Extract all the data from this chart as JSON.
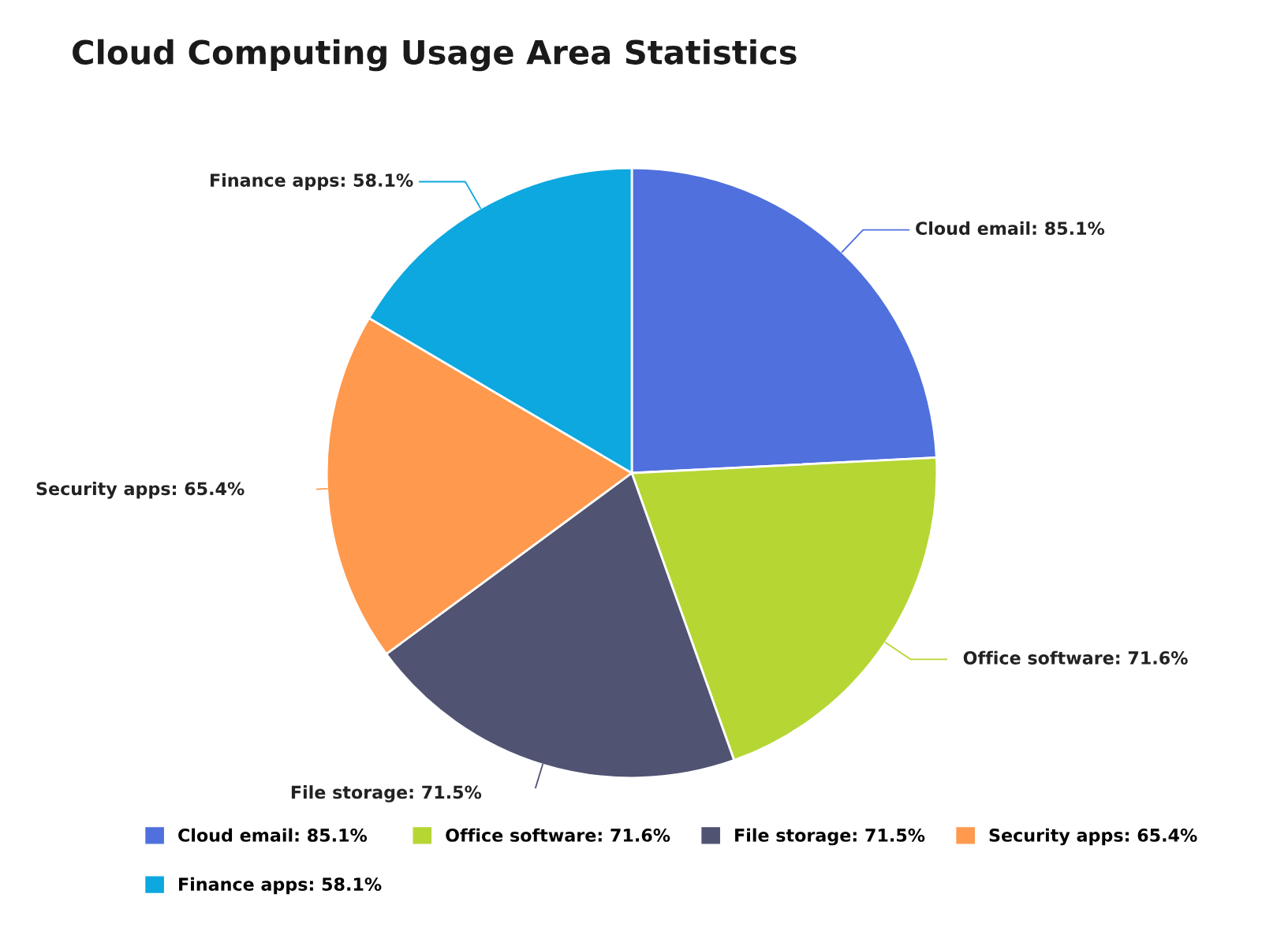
{
  "chart_data": {
    "type": "pie",
    "title": "Cloud Computing Usage Area Statistics",
    "categories": [
      "Cloud email",
      "Office software",
      "File storage",
      "Security apps",
      "Finance apps"
    ],
    "values": [
      85.1,
      71.6,
      71.5,
      65.4,
      58.1
    ],
    "value_labels": [
      "85.1%",
      "71.6%",
      "71.5%",
      "65.4%",
      "58.1%"
    ],
    "colors": [
      "#5070dd",
      "#b6d634",
      "#505372",
      "#ff994d",
      "#0ca8df"
    ],
    "legend": "bottom"
  }
}
